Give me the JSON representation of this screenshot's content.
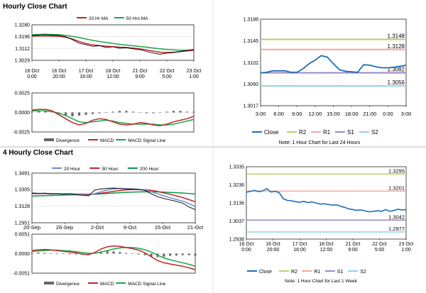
{
  "sections": {
    "hourly_title": "Hourly Close Chart",
    "four_hourly_title": "4 Hourly Close Chart"
  },
  "colors": {
    "close": "#1f6fb5",
    "r2": "#b5d36b",
    "r1": "#f4a6a6",
    "s1": "#9b87c7",
    "s2": "#8fd3e6",
    "price": "#000000",
    "ma_a": "#c0272d",
    "ma_b": "#1aa84c",
    "ma_c": "#0b9a47",
    "hist": "#666666",
    "macd": "#c0272d",
    "signal": "#18a84a",
    "frame": "#222222",
    "grid": "#dddddd"
  },
  "chart_data": [
    {
      "id": "hourly_price",
      "type": "line",
      "title": "",
      "ylim": [
        1.3029,
        1.328
      ],
      "yticks": [
        "1.3280",
        "1.3196",
        "1.3112",
        "1.3029"
      ],
      "xticks": [
        [
          "16 Oct",
          "0:00"
        ],
        [
          "16 Oct",
          "20:00"
        ],
        [
          "17 Oct",
          "16:00"
        ],
        [
          "18 Oct",
          "12:00"
        ],
        [
          "21 Oct",
          "9:00"
        ],
        [
          "22 Oct",
          "5:00"
        ],
        [
          "23 Oct",
          "1:00"
        ]
      ],
      "legend": [
        "20 Hr MA",
        "50 Hrs MA"
      ],
      "series": [
        {
          "name": "Price",
          "values": [
            1.3204,
            1.3208,
            1.321,
            1.3207,
            1.3205,
            1.3196,
            1.3175,
            1.315,
            1.314,
            1.3128,
            1.3132,
            1.312,
            1.3125,
            1.3115,
            1.3118,
            1.311,
            1.3105,
            1.3092,
            1.308,
            1.3072,
            1.308,
            1.3083,
            1.3092,
            1.31,
            1.3106
          ]
        },
        {
          "name": "20 Hr MA",
          "values": [
            1.32,
            1.3201,
            1.3202,
            1.32,
            1.3198,
            1.3192,
            1.318,
            1.3162,
            1.3148,
            1.3138,
            1.3134,
            1.3128,
            1.3126,
            1.3122,
            1.312,
            1.3116,
            1.311,
            1.3102,
            1.3094,
            1.3086,
            1.3084,
            1.3086,
            1.309,
            1.3096,
            1.31
          ]
        },
        {
          "name": "50 Hrs MA",
          "values": [
            1.321,
            1.3212,
            1.3213,
            1.3212,
            1.321,
            1.3205,
            1.3198,
            1.319,
            1.318,
            1.317,
            1.3162,
            1.3155,
            1.3148,
            1.3142,
            1.3137,
            1.3132,
            1.3127,
            1.3122,
            1.3116,
            1.3111,
            1.3106,
            1.3103,
            1.3101,
            1.31,
            1.31
          ]
        }
      ]
    },
    {
      "id": "hourly_macd",
      "type": "line",
      "ylim": [
        -0.0025,
        0.0025
      ],
      "yticks": [
        "0.0025",
        "0.0000",
        "-0.0025"
      ],
      "legend": [
        "Divergence",
        "MACD",
        "MACD Signal Line"
      ],
      "series": [
        {
          "name": "Divergence",
          "values": [
            0.0001,
            0.0002,
            0.0002,
            0.0001,
            -0.0002,
            -0.0004,
            -0.0005,
            -0.0004,
            -0.0003,
            -0.0002,
            -0.0001,
            0.0,
            0.0001,
            0.0002,
            0.0002,
            0.0001,
            0.0,
            -0.0001,
            -0.0001,
            0.0,
            0.0001,
            0.0002,
            0.0002,
            0.0001,
            0.0001
          ]
        },
        {
          "name": "MACD",
          "values": [
            0.0003,
            0.0004,
            0.0004,
            0.0002,
            -0.0003,
            -0.0008,
            -0.0013,
            -0.0016,
            -0.0014,
            -0.001,
            -0.0008,
            -0.0009,
            -0.0012,
            -0.0015,
            -0.0016,
            -0.0015,
            -0.0013,
            -0.0014,
            -0.0016,
            -0.0017,
            -0.0015,
            -0.0012,
            -0.001,
            -0.0008,
            -0.0005
          ]
        },
        {
          "name": "MACD Signal Line",
          "values": [
            0.0002,
            0.0002,
            0.0002,
            0.0001,
            -0.0001,
            -0.0004,
            -0.0008,
            -0.0012,
            -0.0013,
            -0.0012,
            -0.0011,
            -0.001,
            -0.0011,
            -0.0013,
            -0.0014,
            -0.0015,
            -0.0015,
            -0.0015,
            -0.0015,
            -0.0016,
            -0.0016,
            -0.0015,
            -0.0013,
            -0.0011,
            -0.0009
          ]
        }
      ]
    },
    {
      "id": "hourly_24h",
      "type": "line",
      "title": "",
      "ylim": [
        1.3017,
        1.3188
      ],
      "yticks": [
        "1.3188",
        "1.3145",
        "1.3102",
        "1.3060",
        "1.3017"
      ],
      "xticks": [
        "3:00",
        "6:00",
        "9:00",
        "12:00",
        "15:00",
        "18:00",
        "21:00",
        "0:00",
        "3:00"
      ],
      "levels": [
        {
          "name": "R2",
          "value": 1.3148,
          "label": "1.3148"
        },
        {
          "name": "R1",
          "value": 1.3128,
          "label": "1.3128"
        },
        {
          "name": "S1",
          "value": 1.3082,
          "label": "1.3082"
        },
        {
          "name": "S2",
          "value": 1.3056,
          "label": "1.3056"
        }
      ],
      "series": [
        {
          "name": "Close",
          "values": [
            1.3082,
            1.3083,
            1.3086,
            1.3086,
            1.3086,
            1.3083,
            1.3083,
            1.309,
            1.31,
            1.3107,
            1.3116,
            1.3113,
            1.31,
            1.3088,
            1.3085,
            1.3084,
            1.3083,
            1.3098,
            1.3097,
            1.3094,
            1.3092,
            1.3092,
            1.3093,
            1.3095,
            1.3097
          ]
        }
      ],
      "legend": [
        "Close",
        "R2",
        "R1",
        "S1",
        "S2"
      ],
      "note": "Note: 1 Hour Chart for Last 24 Hours"
    },
    {
      "id": "four_hourly_price",
      "type": "line",
      "ylim": [
        1.2951,
        1.3481
      ],
      "yticks": [
        "1.3481",
        "1.3305",
        "1.3128",
        "1.2951"
      ],
      "xticks": [
        "20-Sep",
        "26-Sep",
        "2-Oct",
        "9-Oct",
        "15-Oct",
        "21-Oct"
      ],
      "legend": [
        "20 Hour",
        "50 Hour",
        "200 Hour"
      ],
      "series": [
        {
          "name": "Price",
          "values": [
            1.327,
            1.3262,
            1.3268,
            1.3258,
            1.3262,
            1.3256,
            1.326,
            1.325,
            1.3245,
            1.3238,
            1.33,
            1.3312,
            1.3318,
            1.3322,
            1.3316,
            1.3312,
            1.331,
            1.3305,
            1.3295,
            1.326,
            1.323,
            1.321,
            1.3195,
            1.318,
            1.316,
            1.312,
            1.309
          ]
        },
        {
          "name": "20 Hour",
          "values": [
            1.3268,
            1.3265,
            1.3264,
            1.3262,
            1.326,
            1.3258,
            1.3257,
            1.3254,
            1.325,
            1.3245,
            1.3262,
            1.3282,
            1.33,
            1.3312,
            1.3318,
            1.3315,
            1.3312,
            1.3308,
            1.33,
            1.3282,
            1.326,
            1.3238,
            1.3218,
            1.32,
            1.3182,
            1.3155,
            1.3125
          ]
        },
        {
          "name": "50 Hour",
          "values": [
            1.3262,
            1.3262,
            1.3262,
            1.3261,
            1.3261,
            1.326,
            1.3259,
            1.3258,
            1.3256,
            1.3254,
            1.3258,
            1.3266,
            1.3276,
            1.3286,
            1.3295,
            1.3301,
            1.3305,
            1.3306,
            1.3304,
            1.3296,
            1.3285,
            1.327,
            1.3255,
            1.3238,
            1.322,
            1.3198,
            1.3175
          ]
        },
        {
          "name": "200 Hour",
          "values": [
            1.3236,
            1.3238,
            1.324,
            1.3242,
            1.3244,
            1.3246,
            1.3248,
            1.325,
            1.3252,
            1.3254,
            1.3256,
            1.326,
            1.3264,
            1.3268,
            1.3272,
            1.3276,
            1.3278,
            1.328,
            1.3281,
            1.3281,
            1.328,
            1.3278,
            1.3275,
            1.3272,
            1.3268,
            1.3263,
            1.3258
          ]
        }
      ]
    },
    {
      "id": "four_hourly_macd",
      "type": "line",
      "ylim": [
        -0.0051,
        0.0051
      ],
      "yticks": [
        "0.0051",
        "0.0000",
        "-0.0051"
      ],
      "legend": [
        "Divergence",
        "MACD",
        "MACD Signal Line"
      ],
      "series": [
        {
          "name": "Divergence",
          "values": [
            0.0002,
            0.0003,
            0.0002,
            0.0001,
            0.0,
            -0.0001,
            -0.0002,
            -0.0002,
            -0.0003,
            -0.0002,
            0.0002,
            0.0006,
            0.0008,
            0.0006,
            0.0004,
            0.0002,
            0.0,
            -0.0002,
            -0.0004,
            -0.0007,
            -0.0009,
            -0.0008,
            -0.0006,
            -0.0005,
            -0.0004,
            -0.0004,
            -0.0005
          ]
        },
        {
          "name": "MACD",
          "values": [
            0.0008,
            0.001,
            0.0011,
            0.001,
            0.0008,
            0.0006,
            0.0004,
            0.0002,
            -0.0001,
            -0.0003,
            0.0003,
            0.0012,
            0.0018,
            0.002,
            0.0019,
            0.0016,
            0.0013,
            0.0009,
            0.0002,
            -0.0008,
            -0.0018,
            -0.0024,
            -0.0027,
            -0.003,
            -0.0033,
            -0.0037,
            -0.0042
          ]
        },
        {
          "name": "MACD Signal Line",
          "values": [
            0.0006,
            0.0007,
            0.0008,
            0.0009,
            0.0009,
            0.0008,
            0.0007,
            0.0005,
            0.0003,
            0.0001,
            0.0001,
            0.0004,
            0.0008,
            0.0012,
            0.0015,
            0.0016,
            0.0016,
            0.0014,
            0.001,
            0.0004,
            -0.0004,
            -0.0011,
            -0.0016,
            -0.002,
            -0.0024,
            -0.0028,
            -0.0033
          ]
        }
      ]
    },
    {
      "id": "four_hourly_week",
      "type": "line",
      "ylim": [
        1.2938,
        1.3335
      ],
      "yticks": [
        "1.3335",
        "1.3236",
        "1.3136",
        "1.3037",
        "1.2938"
      ],
      "xticks": [
        [
          "16 Oct",
          "0:00"
        ],
        [
          "16 Oct",
          "20:00"
        ],
        [
          "17 Oct",
          "16:00"
        ],
        [
          "18 Oct",
          "12:00"
        ],
        [
          "21 Oct",
          "9:00"
        ],
        [
          "22 Oct",
          "5:00"
        ],
        [
          "23 Oct",
          "1:00"
        ]
      ],
      "levels": [
        {
          "name": "R2",
          "value": 1.3295,
          "label": "1.3295"
        },
        {
          "name": "R1",
          "value": 1.3201,
          "label": "1.3201"
        },
        {
          "name": "S1",
          "value": 1.3042,
          "label": "1.3042"
        },
        {
          "name": "S2",
          "value": 1.2977,
          "label": "1.2977"
        }
      ],
      "series": [
        {
          "name": "Close",
          "values": [
            1.3195,
            1.32,
            1.3205,
            1.3198,
            1.3203,
            1.3215,
            1.3196,
            1.32,
            1.3193,
            1.316,
            1.315,
            1.3148,
            1.3143,
            1.314,
            1.3145,
            1.3138,
            1.3142,
            1.3136,
            1.313,
            1.3132,
            1.3128,
            1.3124,
            1.3126,
            1.3118,
            1.3112,
            1.3104,
            1.31,
            1.3096,
            1.3098,
            1.3092,
            1.3088,
            1.309,
            1.3094,
            1.309,
            1.31,
            1.309,
            1.3095,
            1.3102,
            1.3098,
            1.31
          ]
        }
      ],
      "legend": [
        "Close",
        "R2",
        "R1",
        "S1",
        "S2"
      ],
      "note": "Note: 1 Hour Chart for Last 1 Week"
    }
  ]
}
